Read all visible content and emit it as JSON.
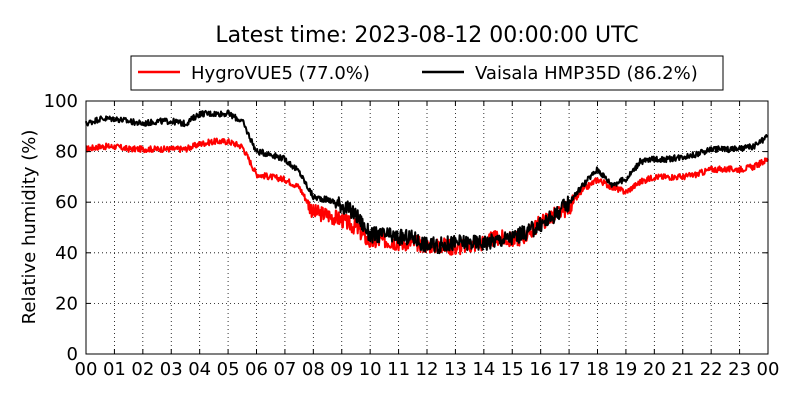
{
  "chart_data": {
    "type": "line",
    "title": "Latest time: 2023-08-12 00:00:00 UTC",
    "xlabel": "",
    "ylabel": "Relative humidity (%)",
    "xlim": [
      0,
      24
    ],
    "ylim": [
      0,
      100
    ],
    "y_ticks": [
      0,
      20,
      40,
      60,
      80,
      100
    ],
    "x_tick_labels": [
      "00",
      "01",
      "02",
      "03",
      "04",
      "05",
      "06",
      "07",
      "08",
      "09",
      "10",
      "11",
      "12",
      "13",
      "14",
      "15",
      "16",
      "17",
      "18",
      "19",
      "20",
      "21",
      "22",
      "23",
      "00"
    ],
    "grid": true,
    "legend_position": "top-center",
    "x": [
      0,
      0.5,
      1,
      1.5,
      2,
      2.5,
      3,
      3.5,
      4,
      4.5,
      5,
      5.5,
      6,
      6.5,
      7,
      7.5,
      8,
      8.5,
      9,
      9.5,
      10,
      10.5,
      11,
      11.5,
      12,
      12.5,
      13,
      13.5,
      14,
      14.5,
      15,
      15.5,
      16,
      16.5,
      17,
      17.5,
      18,
      18.5,
      19,
      19.5,
      20,
      20.5,
      21,
      21.5,
      22,
      22.5,
      23,
      23.5,
      24
    ],
    "series": [
      {
        "name": "HygroVUE5 (77.0%)",
        "color": "#ff0000",
        "values": [
          81,
          82,
          82,
          81,
          81,
          81,
          81,
          81,
          83,
          84,
          84,
          82,
          71,
          70,
          69,
          66,
          56,
          55,
          53,
          50,
          44,
          45,
          44,
          44,
          43,
          43,
          42,
          43,
          44,
          46,
          45,
          47,
          52,
          55,
          58,
          65,
          69,
          66,
          64,
          68,
          70,
          70,
          70,
          71,
          73,
          73,
          73,
          74,
          77
        ]
      },
      {
        "name": "Vaisala HMP35D (86.2%)",
        "color": "#000000",
        "values": [
          91,
          93,
          93,
          92,
          91,
          92,
          92,
          91,
          95,
          95,
          95,
          92,
          80,
          79,
          77,
          72,
          62,
          61,
          59,
          55,
          47,
          47,
          46,
          46,
          43,
          43,
          44,
          44,
          44,
          45,
          46,
          48,
          51,
          55,
          60,
          67,
          73,
          67,
          69,
          76,
          77,
          77,
          78,
          79,
          81,
          81,
          81,
          82,
          86
        ]
      }
    ]
  }
}
